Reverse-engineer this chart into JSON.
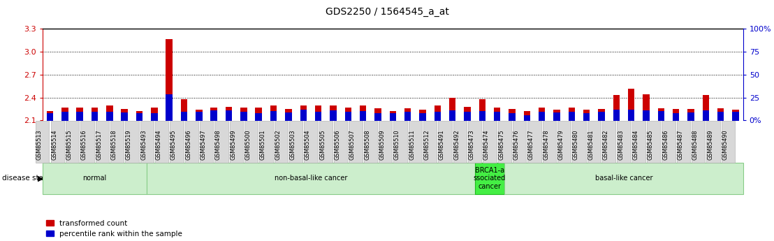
{
  "title": "GDS2250 / 1564545_a_at",
  "ylim": [
    2.1,
    3.3
  ],
  "yticks": [
    2.1,
    2.4,
    2.7,
    3.0,
    3.3
  ],
  "bar_color_red": "#cc0000",
  "bar_color_blue": "#0000cc",
  "bg_color": "#ffffff",
  "legend_red": "transformed count",
  "legend_blue": "percentile rank within the sample",
  "groups": [
    {
      "label": "normal",
      "start": 0,
      "end": 7,
      "color": "#cceecc",
      "border": "#88cc88"
    },
    {
      "label": "non-basal-like cancer",
      "start": 7,
      "end": 29,
      "color": "#cceecc",
      "border": "#88cc88"
    },
    {
      "label": "BRCA1-a\nssociated\ncancer",
      "start": 29,
      "end": 31,
      "color": "#44ee44",
      "border": "#22bb22"
    },
    {
      "label": "basal-like cancer",
      "start": 31,
      "end": 47,
      "color": "#cceecc",
      "border": "#88cc88"
    }
  ],
  "samples": [
    {
      "name": "GSM85513",
      "red": 2.22,
      "blue": 2.195
    },
    {
      "name": "GSM85514",
      "red": 2.27,
      "blue": 2.215
    },
    {
      "name": "GSM85515",
      "red": 2.27,
      "blue": 2.21
    },
    {
      "name": "GSM85516",
      "red": 2.27,
      "blue": 2.215
    },
    {
      "name": "GSM85517",
      "red": 2.3,
      "blue": 2.21
    },
    {
      "name": "GSM85518",
      "red": 2.25,
      "blue": 2.205
    },
    {
      "name": "GSM85519",
      "red": 2.22,
      "blue": 2.195
    },
    {
      "name": "GSM85493",
      "red": 2.27,
      "blue": 2.2
    },
    {
      "name": "GSM85494",
      "red": 3.17,
      "blue": 2.44
    },
    {
      "name": "GSM85495",
      "red": 2.38,
      "blue": 2.21
    },
    {
      "name": "GSM85496",
      "red": 2.24,
      "blue": 2.215
    },
    {
      "name": "GSM85497",
      "red": 2.27,
      "blue": 2.23
    },
    {
      "name": "GSM85498",
      "red": 2.28,
      "blue": 2.23
    },
    {
      "name": "GSM85499",
      "red": 2.27,
      "blue": 2.21
    },
    {
      "name": "GSM85500",
      "red": 2.27,
      "blue": 2.195
    },
    {
      "name": "GSM85501",
      "red": 2.3,
      "blue": 2.22
    },
    {
      "name": "GSM85502",
      "red": 2.25,
      "blue": 2.205
    },
    {
      "name": "GSM85503",
      "red": 2.3,
      "blue": 2.24
    },
    {
      "name": "GSM85504",
      "red": 2.3,
      "blue": 2.21
    },
    {
      "name": "GSM85505",
      "red": 2.3,
      "blue": 2.23
    },
    {
      "name": "GSM85506",
      "red": 2.27,
      "blue": 2.21
    },
    {
      "name": "GSM85507",
      "red": 2.3,
      "blue": 2.22
    },
    {
      "name": "GSM85508",
      "red": 2.26,
      "blue": 2.2
    },
    {
      "name": "GSM85509",
      "red": 2.22,
      "blue": 2.195
    },
    {
      "name": "GSM85510",
      "red": 2.26,
      "blue": 2.215
    },
    {
      "name": "GSM85511",
      "red": 2.24,
      "blue": 2.2
    },
    {
      "name": "GSM85512",
      "red": 2.3,
      "blue": 2.21
    },
    {
      "name": "GSM85491",
      "red": 2.4,
      "blue": 2.235
    },
    {
      "name": "GSM85492",
      "red": 2.28,
      "blue": 2.21
    },
    {
      "name": "GSM85473",
      "red": 2.38,
      "blue": 2.22
    },
    {
      "name": "GSM85474",
      "red": 2.27,
      "blue": 2.21
    },
    {
      "name": "GSM85475",
      "red": 2.25,
      "blue": 2.2
    },
    {
      "name": "GSM85476",
      "red": 2.22,
      "blue": 2.165
    },
    {
      "name": "GSM85477",
      "red": 2.27,
      "blue": 2.21
    },
    {
      "name": "GSM85478",
      "red": 2.24,
      "blue": 2.205
    },
    {
      "name": "GSM85479",
      "red": 2.27,
      "blue": 2.21
    },
    {
      "name": "GSM85480",
      "red": 2.24,
      "blue": 2.2
    },
    {
      "name": "GSM85481",
      "red": 2.25,
      "blue": 2.21
    },
    {
      "name": "GSM85482",
      "red": 2.43,
      "blue": 2.24
    },
    {
      "name": "GSM85483",
      "red": 2.52,
      "blue": 2.245
    },
    {
      "name": "GSM85484",
      "red": 2.44,
      "blue": 2.235
    },
    {
      "name": "GSM85485",
      "red": 2.26,
      "blue": 2.22
    },
    {
      "name": "GSM85486",
      "red": 2.25,
      "blue": 2.2
    },
    {
      "name": "GSM85487",
      "red": 2.25,
      "blue": 2.205
    },
    {
      "name": "GSM85488",
      "red": 2.43,
      "blue": 2.235
    },
    {
      "name": "GSM85489",
      "red": 2.26,
      "blue": 2.21
    },
    {
      "name": "GSM85490",
      "red": 2.24,
      "blue": 2.215
    }
  ]
}
